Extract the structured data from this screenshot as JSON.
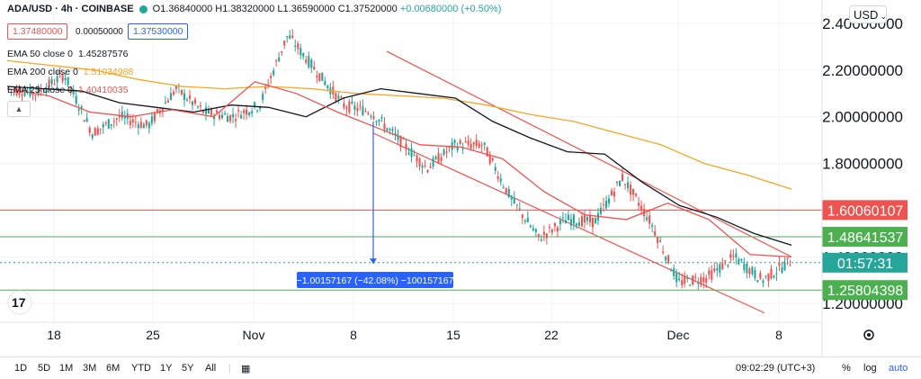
{
  "header": {
    "symbol": "ADA/USD · 4h · COINBASE",
    "open": "O1.36840000",
    "high": "H1.38320000",
    "low": "L1.36590000",
    "close": "C1.37520000",
    "change": "+0.00680000 (+0.50%)"
  },
  "bid_price": "1.37480000",
  "spread": "0.00050000",
  "ask_price": "1.37530000",
  "ema_legend": [
    {
      "label": "EMA 50 close 0",
      "value": "1.45287576",
      "color": "#131722"
    },
    {
      "label": "EMA 200 close 0",
      "value": "1.51034988",
      "color": "#f5a623"
    },
    {
      "label": "EMA 25 close 0",
      "value": "1.40410035",
      "color": "#ef5350"
    }
  ],
  "currency_button": "USD",
  "price_labels": [
    {
      "text": "1.60060107",
      "color": "#ef5350",
      "price": 1.6006
    },
    {
      "text": "1.48641537",
      "color": "#4caf50",
      "price": 1.4864
    },
    {
      "text": "01:57:31",
      "color": "#26a69a",
      "price": 1.3752
    },
    {
      "text": "1.25804398",
      "color": "#4caf50",
      "price": 1.258
    }
  ],
  "measure_label": "−1.00157167 (−42.08%) −100157167",
  "timeframes": [
    "1D",
    "5D",
    "1M",
    "3M",
    "6M",
    "YTD",
    "1Y",
    "5Y",
    "All"
  ],
  "clock": "09:02:29 (UTC+3)",
  "scale_options": [
    "%",
    "log",
    "auto"
  ],
  "chart_data": {
    "type": "candlestick",
    "title": "ADA/USD · 4h · COINBASE",
    "y_axis_ticks": [
      "2.40000000",
      "2.20000000",
      "2.00000000",
      "1.80000000",
      "1.60000000",
      "1.40000000",
      "1.20000000"
    ],
    "x_axis_ticks": [
      "18",
      "25",
      "Nov",
      "8",
      "15",
      "22",
      "Dec",
      "8"
    ],
    "ylim": [
      1.12,
      2.5
    ],
    "anchor_prices": [
      2.12,
      2.1,
      2.18,
      1.93,
      2.0,
      1.96,
      2.12,
      2.02,
      2.0,
      2.05,
      2.35,
      2.2,
      2.05,
      2.02,
      1.9,
      1.78,
      1.88,
      1.88,
      1.65,
      1.48,
      1.56,
      1.55,
      1.74,
      1.55,
      1.29,
      1.31,
      1.4,
      1.3,
      1.38
    ],
    "ema50": [
      2.13,
      2.12,
      2.11,
      2.06,
      2.04,
      2.02,
      2.05,
      2.04,
      2.0,
      2.08,
      2.12,
      2.1,
      2.08,
      1.98,
      1.91,
      1.85,
      1.84,
      1.72,
      1.62,
      1.57,
      1.5,
      1.45
    ],
    "ema200": [
      2.24,
      2.22,
      2.2,
      2.16,
      2.13,
      2.12,
      2.13,
      2.12,
      2.1,
      2.09,
      2.08,
      2.05,
      2.01,
      1.98,
      1.93,
      1.88,
      1.8,
      1.75,
      1.69
    ],
    "ema25": [
      2.12,
      2.09,
      2.02,
      2.0,
      2.03,
      2.0,
      2.15,
      2.1,
      2.02,
      1.95,
      1.88,
      1.87,
      1.82,
      1.68,
      1.58,
      1.56,
      1.63,
      1.56,
      1.41,
      1.4
    ],
    "channel_upper": [
      2.28,
      1.4
    ],
    "channel_lower": [
      1.93,
      1.16
    ],
    "horizontal_lines": [
      {
        "price": 1.6006,
        "color": "#ef5350"
      },
      {
        "price": 1.4864,
        "color": "#4caf50"
      },
      {
        "price": 1.258,
        "color": "#4caf50"
      }
    ],
    "measure_arrow": {
      "from": 1.98,
      "to": 1.37
    }
  }
}
